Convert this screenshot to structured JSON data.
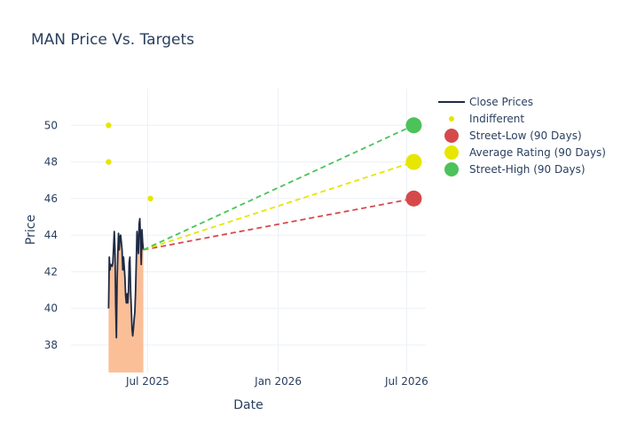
{
  "chart_data": {
    "type": "line",
    "title": "MAN Price Vs. Targets",
    "xlabel": "Date",
    "ylabel": "Price",
    "x_range": [
      "2025-03-15",
      "2026-07-28"
    ],
    "ylim": [
      36.5,
      52.0
    ],
    "x_ticks": [
      {
        "date": "2025-07-01",
        "label": "Jul 2025"
      },
      {
        "date": "2026-01-01",
        "label": "Jan 2026"
      },
      {
        "date": "2026-07-01",
        "label": "Jul 2026"
      }
    ],
    "y_ticks": [
      38,
      40,
      42,
      44,
      46,
      48,
      50
    ],
    "grid": true,
    "legend_position": "top-right",
    "series": [
      {
        "name": "Close Prices",
        "kind": "line-area",
        "color": "#1f2a44",
        "fill": "#fbbf98",
        "points": [
          [
            "2025-05-07",
            40.0
          ],
          [
            "2025-05-08",
            42.8
          ],
          [
            "2025-05-09",
            42.1
          ],
          [
            "2025-05-10",
            42.4
          ],
          [
            "2025-05-12",
            42.3
          ],
          [
            "2025-05-13",
            42.5
          ],
          [
            "2025-05-14",
            43.3
          ],
          [
            "2025-05-15",
            44.2
          ],
          [
            "2025-05-16",
            43.2
          ],
          [
            "2025-05-17",
            40.2
          ],
          [
            "2025-05-18",
            38.4
          ],
          [
            "2025-05-19",
            41.5
          ],
          [
            "2025-05-20",
            43.0
          ],
          [
            "2025-05-21",
            44.1
          ],
          [
            "2025-05-22",
            43.2
          ],
          [
            "2025-05-23",
            43.9
          ],
          [
            "2025-05-24",
            44.0
          ],
          [
            "2025-05-26",
            43.2
          ],
          [
            "2025-05-27",
            42.1
          ],
          [
            "2025-05-28",
            42.8
          ],
          [
            "2025-05-29",
            42.3
          ],
          [
            "2025-05-30",
            41.7
          ],
          [
            "2025-05-31",
            40.7
          ],
          [
            "2025-06-01",
            40.3
          ],
          [
            "2025-06-02",
            40.8
          ],
          [
            "2025-06-03",
            40.3
          ],
          [
            "2025-06-04",
            40.9
          ],
          [
            "2025-06-05",
            42.5
          ],
          [
            "2025-06-06",
            42.8
          ],
          [
            "2025-06-07",
            41.0
          ],
          [
            "2025-06-08",
            40.0
          ],
          [
            "2025-06-09",
            38.9
          ],
          [
            "2025-06-10",
            38.5
          ],
          [
            "2025-06-11",
            38.9
          ],
          [
            "2025-06-12",
            39.4
          ],
          [
            "2025-06-13",
            39.8
          ],
          [
            "2025-06-14",
            40.9
          ],
          [
            "2025-06-15",
            42.5
          ],
          [
            "2025-06-16",
            44.2
          ],
          [
            "2025-06-17",
            43.6
          ],
          [
            "2025-06-18",
            43.0
          ],
          [
            "2025-06-19",
            44.6
          ],
          [
            "2025-06-20",
            44.9
          ],
          [
            "2025-06-21",
            43.8
          ],
          [
            "2025-06-22",
            42.4
          ],
          [
            "2025-06-23",
            44.3
          ],
          [
            "2025-06-24",
            43.6
          ],
          [
            "2025-06-25",
            43.2
          ]
        ]
      },
      {
        "name": "Indifferent",
        "kind": "markers",
        "color": "#e6e600",
        "points": [
          [
            "2025-05-07",
            50.0
          ],
          [
            "2025-05-07",
            48.0
          ],
          [
            "2025-07-05",
            46.0
          ]
        ]
      },
      {
        "name": "Street-Low (90 Days)",
        "kind": "target",
        "color": "#d6494b",
        "from": [
          "2025-06-25",
          43.2
        ],
        "to": [
          "2026-07-11",
          46.0
        ]
      },
      {
        "name": "Average Rating (90 Days)",
        "kind": "target",
        "color": "#e6e600",
        "from": [
          "2025-06-25",
          43.2
        ],
        "to": [
          "2026-07-11",
          48.0
        ]
      },
      {
        "name": "Street-High (90 Days)",
        "kind": "target",
        "color": "#4cc25a",
        "from": [
          "2025-06-25",
          43.2
        ],
        "to": [
          "2026-07-11",
          50.0
        ]
      }
    ]
  }
}
